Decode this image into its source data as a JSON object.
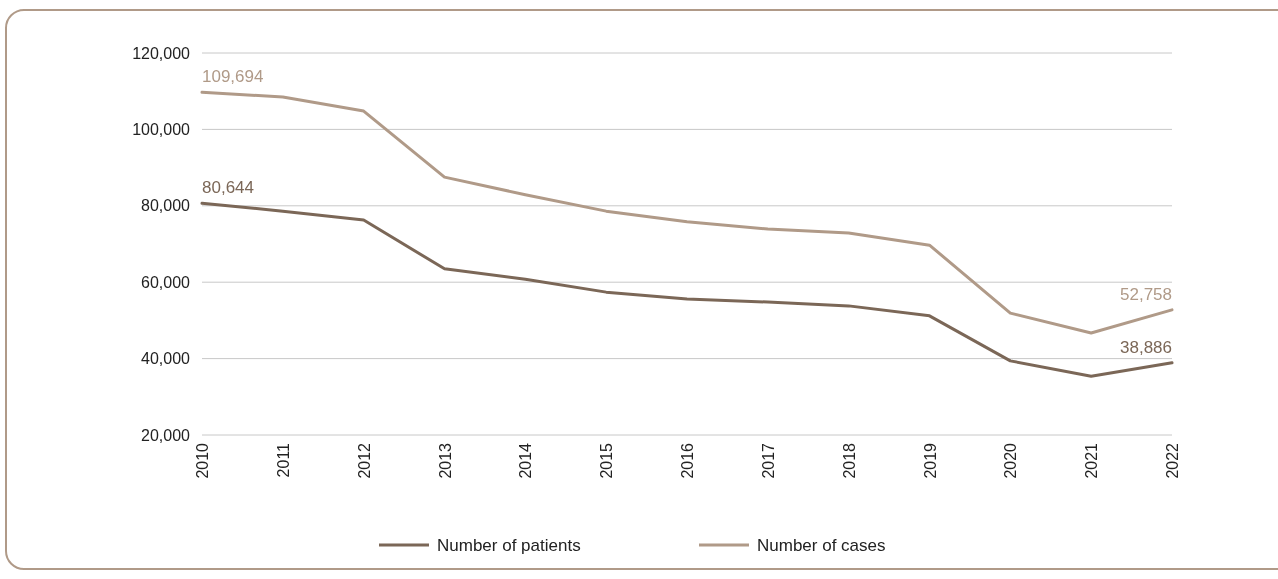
{
  "chart_data": {
    "type": "line",
    "categories": [
      "2010",
      "2011",
      "2012",
      "2013",
      "2014",
      "2015",
      "2016",
      "2017",
      "2018",
      "2019",
      "2020",
      "2021",
      "2022"
    ],
    "series": [
      {
        "name": "Number of patients",
        "color": "#7b6757",
        "values": [
          80644,
          78600,
          76300,
          63500,
          60800,
          57400,
          55600,
          54800,
          53800,
          51200,
          39400,
          35400,
          38886
        ],
        "value_labels": [
          "80,644",
          null,
          null,
          null,
          null,
          null,
          null,
          null,
          null,
          null,
          null,
          null,
          "38,886"
        ]
      },
      {
        "name": "Number of cases",
        "color": "#b09a88",
        "values": [
          109694,
          108500,
          104800,
          87500,
          82900,
          78600,
          75800,
          73900,
          72900,
          69700,
          51900,
          46700,
          52758
        ],
        "value_labels": [
          "109,694",
          null,
          null,
          null,
          null,
          null,
          null,
          null,
          null,
          null,
          null,
          null,
          "52,758"
        ]
      }
    ],
    "ylim": [
      20000,
      120000
    ],
    "yticks": [
      {
        "value": 20000,
        "label": "20,000"
      },
      {
        "value": 40000,
        "label": "40,000"
      },
      {
        "value": 60000,
        "label": "60,000"
      },
      {
        "value": 80000,
        "label": "80,000"
      },
      {
        "value": 100000,
        "label": "100,000"
      },
      {
        "value": 120000,
        "label": "120,000"
      }
    ],
    "grid": "y",
    "legend": "bottom",
    "marker": "none",
    "line_style": "solid"
  }
}
